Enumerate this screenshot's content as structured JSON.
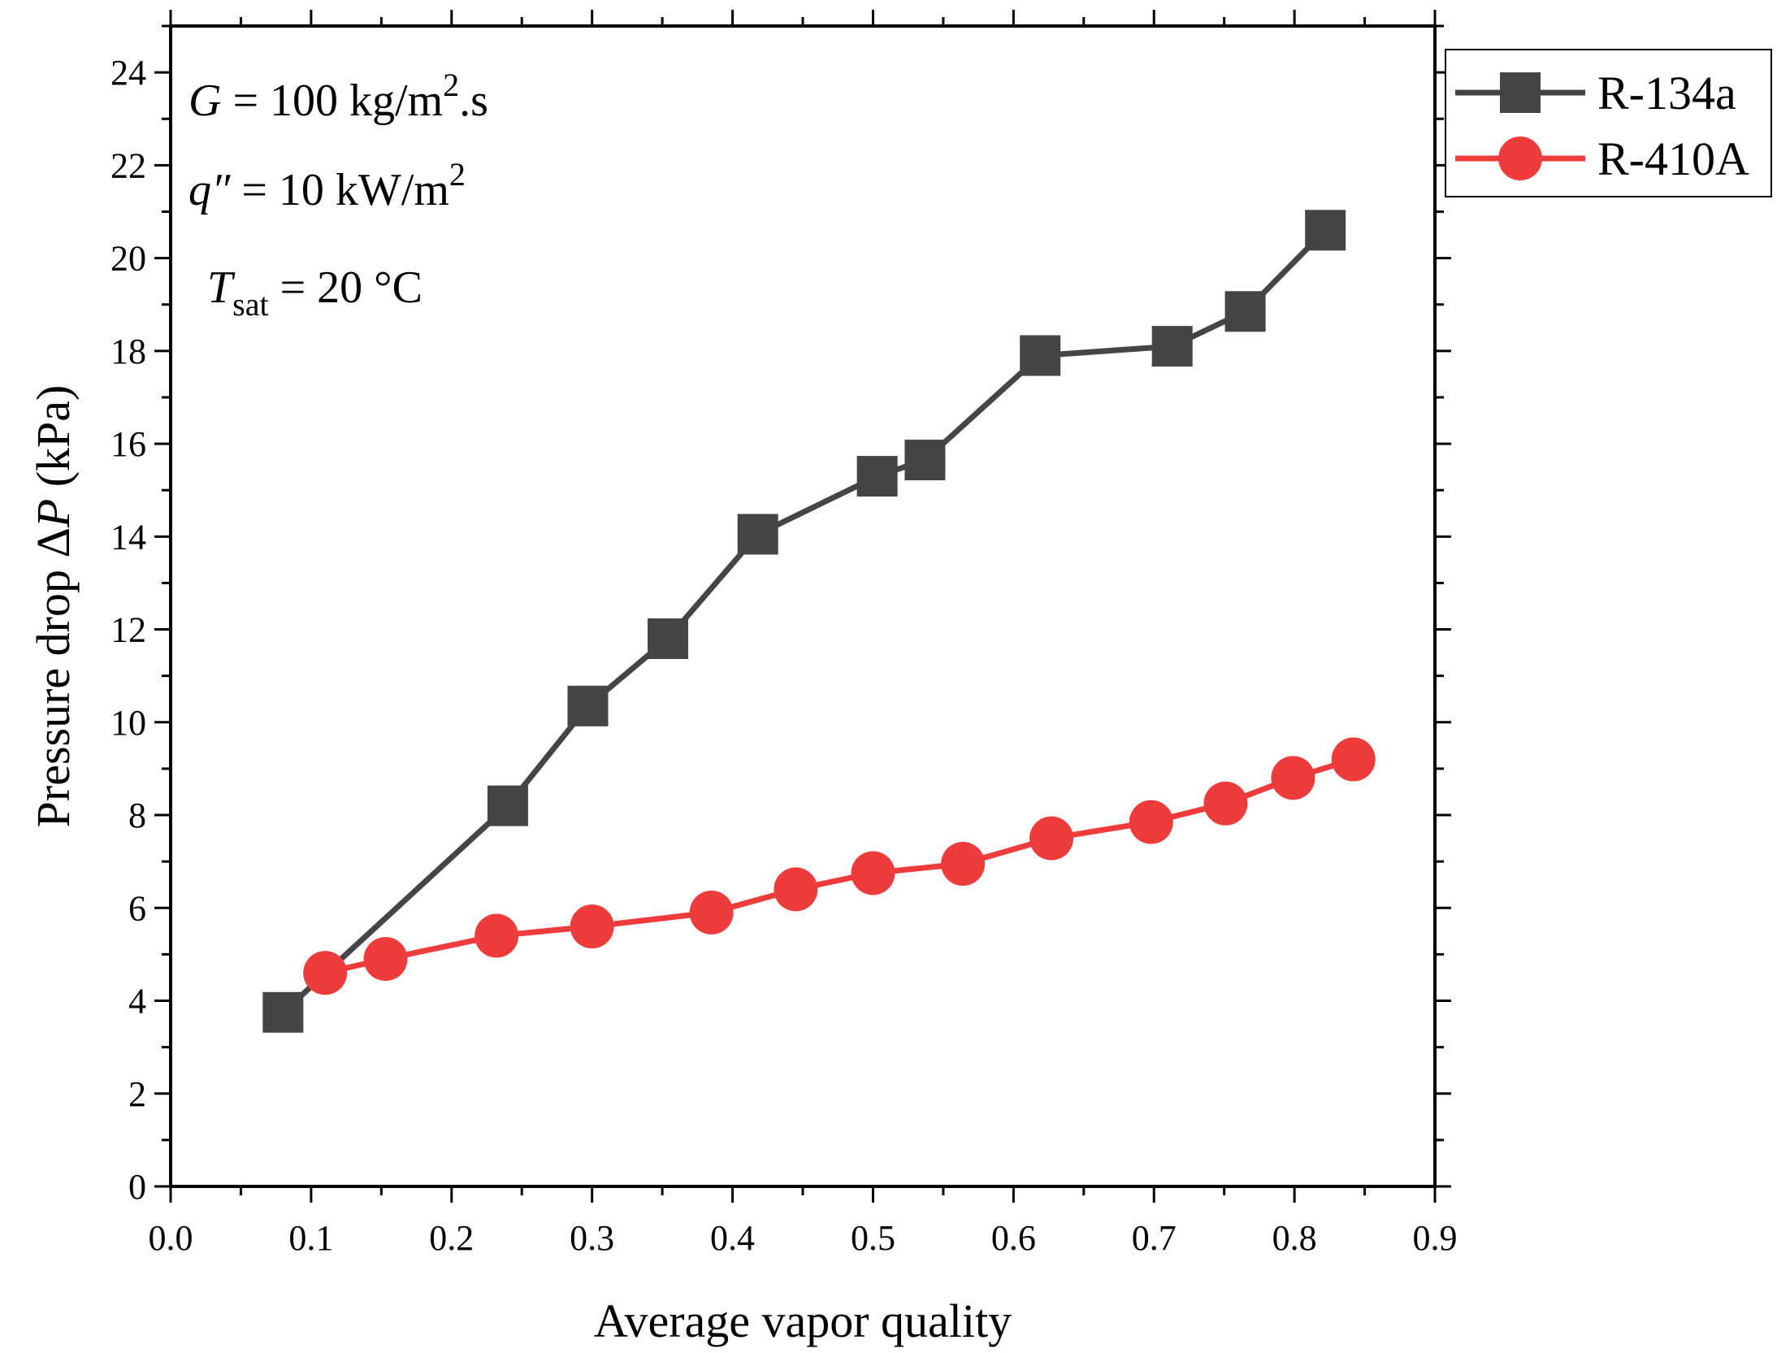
{
  "chart_data": {
    "type": "line",
    "title": "",
    "xlabel": "Average vapor quality",
    "ylabel_prefix": "Pressure drop Δ",
    "ylabel_var": "P",
    "ylabel_suffix": " (kPa)",
    "xlim": [
      0.0,
      0.9
    ],
    "ylim": [
      0,
      25
    ],
    "xticks": [
      0.0,
      0.1,
      0.2,
      0.3,
      0.4,
      0.5,
      0.6,
      0.7,
      0.8,
      0.9
    ],
    "xtick_labels": [
      "0.0",
      "0.1",
      "0.2",
      "0.3",
      "0.4",
      "0.5",
      "0.6",
      "0.7",
      "0.8",
      "0.9"
    ],
    "yticks": [
      0,
      2,
      4,
      6,
      8,
      10,
      12,
      14,
      16,
      18,
      20,
      22,
      24
    ],
    "ytick_labels": [
      "0",
      "2",
      "4",
      "6",
      "8",
      "10",
      "12",
      "14",
      "16",
      "18",
      "20",
      "22",
      "24"
    ],
    "grid": false,
    "legend_position": "top-right outside",
    "annotations": {
      "line1": {
        "var": "G",
        "text": " = 100 kg/m",
        "sup": "2",
        "tail": ".s"
      },
      "line2": {
        "var": "q″",
        "text": " = 10 kW/m",
        "sup": "2"
      },
      "line3": {
        "var": "T",
        "sub": "sat",
        "text": " = 20 °C"
      }
    },
    "series": [
      {
        "name": "R-134a",
        "color": "#454545",
        "marker": "square",
        "x": [
          0.08,
          0.24,
          0.297,
          0.354,
          0.418,
          0.503,
          0.537,
          0.619,
          0.713,
          0.765,
          0.822
        ],
        "y": [
          3.75,
          8.2,
          10.35,
          11.8,
          14.05,
          15.3,
          15.65,
          17.9,
          18.1,
          18.85,
          20.6
        ]
      },
      {
        "name": "R-410A",
        "color": "#ee3b3b",
        "marker": "circle",
        "x": [
          0.11,
          0.153,
          0.232,
          0.3,
          0.385,
          0.445,
          0.5,
          0.564,
          0.627,
          0.698,
          0.751,
          0.799,
          0.842
        ],
        "y": [
          4.6,
          4.9,
          5.4,
          5.6,
          5.9,
          6.4,
          6.75,
          6.95,
          7.5,
          7.85,
          8.25,
          8.8,
          9.2
        ]
      }
    ]
  }
}
